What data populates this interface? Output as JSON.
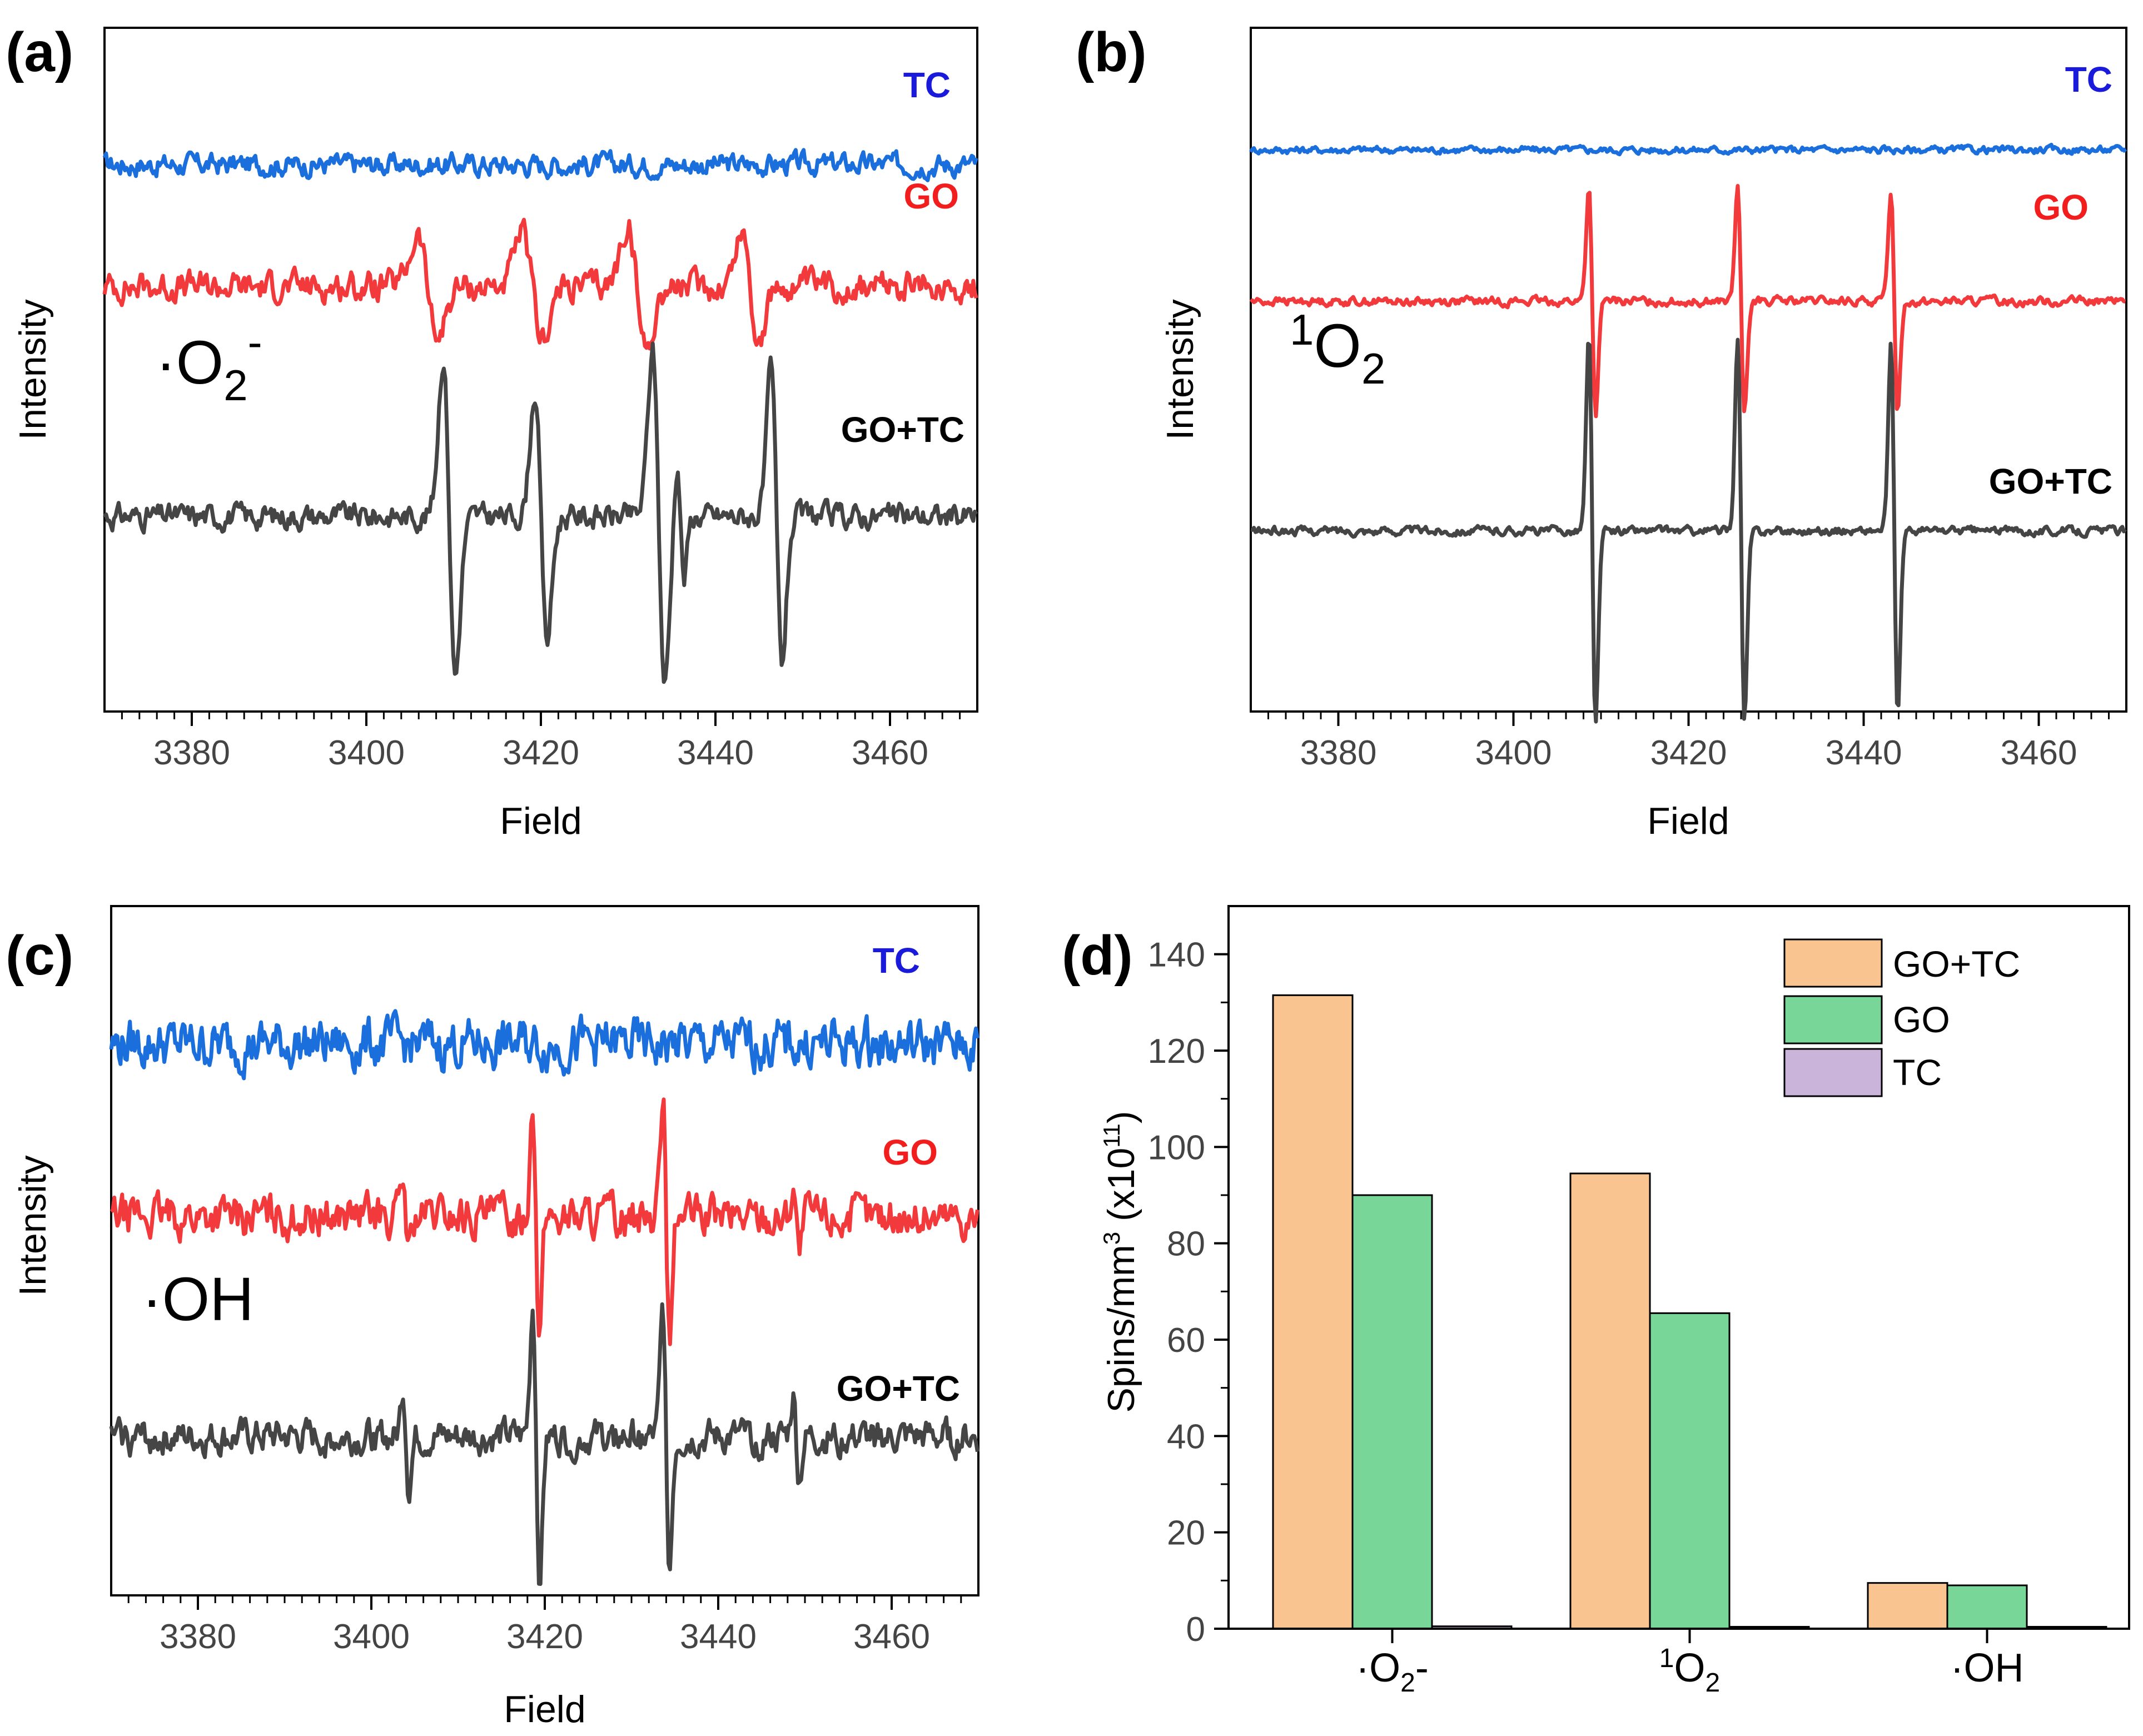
{
  "colors": {
    "TC": "#1a6fdc",
    "GO": "#f23a3c",
    "GO+TC": "#454545",
    "tc_label": "#1a1adb",
    "go_label": "#f21d1d",
    "bar_gotc": "#f9c48f",
    "bar_go": "#78d699",
    "bar_tc": "#cab4da"
  },
  "chart_data": [
    {
      "type": "line",
      "panel": "(a)",
      "species": "·O2-",
      "xlabel": "Field",
      "ylabel": "Intensity",
      "xlim": [
        3370,
        3470
      ],
      "xticks": [
        3380,
        3400,
        3420,
        3440,
        3460
      ],
      "noise": 0.06,
      "series": [
        {
          "name": "TC",
          "baseline": 5.6,
          "noise": 0.09,
          "peaks": []
        },
        {
          "name": "GO",
          "baseline": 4.35,
          "noise": 0.12,
          "peaks": [
            {
              "x": 3407,
              "a": 0.75,
              "w": 1.6
            },
            {
              "x": 3419,
              "a": 0.75,
              "w": 1.6
            },
            {
              "x": 3431,
              "a": 0.9,
              "w": 1.5
            },
            {
              "x": 3444,
              "a": 0.8,
              "w": 1.4
            }
          ]
        },
        {
          "name": "GO+TC",
          "baseline": 2.0,
          "noise": 0.1,
          "peaks": [
            {
              "x": 3409.5,
              "a": 2.3,
              "w": 1.0
            },
            {
              "x": 3420,
              "a": 1.8,
              "w": 1.0
            },
            {
              "x": 3433.5,
              "a": 2.4,
              "w": 1.0
            },
            {
              "x": 3436,
              "a": 0.9,
              "w": 0.6
            },
            {
              "x": 3447,
              "a": 2.1,
              "w": 0.9
            }
          ]
        }
      ],
      "labels": [
        "TC",
        "GO",
        "GO+TC"
      ]
    },
    {
      "type": "line",
      "panel": "(b)",
      "species": "1O2",
      "xlabel": "Field",
      "ylabel": "Intensity",
      "xlim": [
        3370,
        3470
      ],
      "xticks": [
        3380,
        3400,
        3420,
        3440,
        3460
      ],
      "series": [
        {
          "name": "TC",
          "baseline": 5.75,
          "noise": 0.03,
          "peaks": []
        },
        {
          "name": "GO",
          "baseline": 4.2,
          "noise": 0.035,
          "peaks": [
            {
              "x": 3409,
              "a": 1.65,
              "w": 0.55
            },
            {
              "x": 3426,
              "a": 1.65,
              "w": 0.55
            },
            {
              "x": 3443.5,
              "a": 1.6,
              "w": 0.55
            }
          ]
        },
        {
          "name": "GO+TC",
          "baseline": 1.85,
          "noise": 0.035,
          "peaks": [
            {
              "x": 3409,
              "a": 2.8,
              "w": 0.55
            },
            {
              "x": 3426,
              "a": 2.8,
              "w": 0.55
            },
            {
              "x": 3443.5,
              "a": 2.65,
              "w": 0.55
            }
          ]
        }
      ],
      "labels": [
        "TC",
        "GO",
        "GO+TC"
      ]
    },
    {
      "type": "line",
      "panel": "(c)",
      "species": "·OH",
      "xlabel": "Field",
      "ylabel": "Intensity",
      "xlim": [
        3370,
        3470
      ],
      "xticks": [
        3380,
        3400,
        3420,
        3440,
        3460
      ],
      "series": [
        {
          "name": "TC",
          "baseline": 5.6,
          "noise": 0.2,
          "peaks": []
        },
        {
          "name": "GO",
          "baseline": 3.85,
          "noise": 0.17,
          "peaks": [
            {
              "x": 3404,
              "a": 0.5,
              "w": 0.5
            },
            {
              "x": 3419,
              "a": 1.7,
              "w": 0.55
            },
            {
              "x": 3434,
              "a": 1.75,
              "w": 0.55
            },
            {
              "x": 3449,
              "a": 0.5,
              "w": 0.5
            }
          ]
        },
        {
          "name": "GO+TC",
          "baseline": 1.6,
          "noise": 0.14,
          "peaks": [
            {
              "x": 3404,
              "a": 0.7,
              "w": 0.5
            },
            {
              "x": 3419,
              "a": 1.9,
              "w": 0.55
            },
            {
              "x": 3434,
              "a": 1.8,
              "w": 0.55
            },
            {
              "x": 3449,
              "a": 0.6,
              "w": 0.5
            }
          ]
        }
      ],
      "labels": [
        "TC",
        "GO",
        "GO+TC"
      ]
    },
    {
      "type": "bar",
      "panel": "(d)",
      "ylabel": "Spins/mm3 (x1011)",
      "ylim": [
        0,
        150
      ],
      "yticks": [
        0,
        20,
        40,
        60,
        80,
        100,
        120,
        140
      ],
      "categories": [
        "·O2-",
        "1O2",
        "·OH"
      ],
      "series": [
        {
          "name": "GO+TC",
          "values": [
            131.5,
            94.5,
            9.5
          ]
        },
        {
          "name": "GO",
          "values": [
            90,
            65.5,
            9
          ]
        },
        {
          "name": "TC",
          "values": [
            0.5,
            0.4,
            0.4
          ]
        }
      ],
      "legend_position": "top-right"
    }
  ]
}
